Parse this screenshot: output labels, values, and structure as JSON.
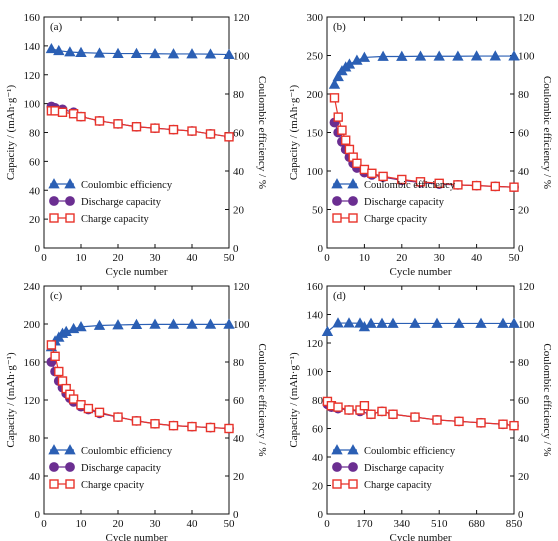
{
  "colors": {
    "coulombic": "#2b5fb4",
    "discharge": "#6b2e91",
    "charge": "#e8332a",
    "axis": "#111111"
  },
  "chart_data": [
    {
      "panel": "(a)",
      "type": "scatter",
      "xlabel": "Cycle number",
      "ylabel_left": "Capacity / (mAh·g⁻¹)",
      "ylabel_right": "Coulombic efficiency / %",
      "xlim": [
        0,
        50
      ],
      "ylim_left": [
        0,
        160
      ],
      "ylim_right": [
        0,
        120
      ],
      "xticks": [
        0,
        10,
        20,
        30,
        40,
        50
      ],
      "yticks_left": [
        0,
        20,
        40,
        60,
        80,
        100,
        120,
        140,
        160
      ],
      "yticks_right": [
        0,
        20,
        40,
        60,
        80,
        100,
        120
      ],
      "legend": [
        "Coulombic efficiency",
        "Discharge capacity",
        "Charge capacity"
      ],
      "series": [
        {
          "name": "Coulombic efficiency",
          "axis": "right",
          "marker": "triangle",
          "x": [
            2,
            4,
            7,
            10,
            15,
            20,
            25,
            30,
            35,
            40,
            45,
            50
          ],
          "y": [
            103.5,
            102.5,
            101.8,
            101.5,
            101.2,
            101.0,
            101.0,
            100.9,
            100.8,
            100.8,
            100.7,
            100.5
          ]
        },
        {
          "name": "Discharge capacity",
          "axis": "left",
          "marker": "circle",
          "x": [
            2,
            3,
            5,
            8,
            10,
            15,
            20,
            25,
            30,
            35,
            40,
            45,
            50
          ],
          "y": [
            98,
            97,
            96,
            94,
            91,
            88,
            86,
            84,
            83,
            82,
            81,
            79,
            77
          ]
        },
        {
          "name": "Charge capacity",
          "axis": "left",
          "marker": "square",
          "x": [
            2,
            3,
            5,
            8,
            10,
            15,
            20,
            25,
            30,
            35,
            40,
            45,
            50
          ],
          "y": [
            95,
            95,
            94,
            93,
            91,
            88,
            86,
            84,
            83,
            82,
            81,
            79,
            77
          ]
        }
      ]
    },
    {
      "panel": "(b)",
      "type": "scatter",
      "xlabel": "Cycle number",
      "ylabel_left": "Capacity / (mAh·g⁻¹)",
      "ylabel_right": "Coulombic efficiency / %",
      "xlim": [
        0,
        50
      ],
      "ylim_left": [
        0,
        300
      ],
      "ylim_right": [
        0,
        120
      ],
      "xticks": [
        0,
        10,
        20,
        30,
        40,
        50
      ],
      "yticks_left": [
        0,
        50,
        100,
        150,
        200,
        250,
        300
      ],
      "yticks_right": [
        0,
        20,
        40,
        60,
        80,
        100,
        120
      ],
      "legend": [
        "Coulombic efficiency",
        "Discharge capacity",
        "Charge cpacity"
      ],
      "series": [
        {
          "name": "Coulombic efficiency",
          "axis": "right",
          "marker": "triangle",
          "x": [
            2,
            3,
            4,
            5,
            6,
            8,
            10,
            15,
            20,
            25,
            30,
            35,
            40,
            45,
            50
          ],
          "y": [
            85,
            89,
            92,
            94,
            95.5,
            97.5,
            99,
            99.5,
            99.5,
            99.6,
            99.6,
            99.6,
            99.7,
            99.7,
            99.7
          ]
        },
        {
          "name": "Discharge capacity",
          "axis": "left",
          "marker": "circle",
          "x": [
            2,
            3,
            4,
            5,
            6,
            7,
            8,
            10,
            12,
            15,
            20,
            25,
            30,
            35,
            40,
            45,
            50
          ],
          "y": [
            163,
            150,
            138,
            128,
            118,
            110,
            104,
            98,
            95,
            92,
            88,
            85,
            83,
            82,
            81,
            80,
            79
          ]
        },
        {
          "name": "Charge cpacity",
          "axis": "left",
          "marker": "square",
          "x": [
            2,
            3,
            4,
            5,
            6,
            7,
            8,
            10,
            12,
            15,
            20,
            25,
            30,
            35,
            40,
            45,
            50
          ],
          "y": [
            195,
            170,
            153,
            140,
            128,
            118,
            110,
            102,
            97,
            93,
            89,
            86,
            84,
            82,
            81,
            80,
            79
          ]
        }
      ]
    },
    {
      "panel": "(c)",
      "type": "scatter",
      "xlabel": "Cycle number",
      "ylabel_left": "Capacity / (mAh·g⁻¹)",
      "ylabel_right": "Coulombic efficiency / %",
      "xlim": [
        0,
        50
      ],
      "ylim_left": [
        0,
        240
      ],
      "ylim_right": [
        0,
        120
      ],
      "xticks": [
        0,
        10,
        20,
        30,
        40,
        50
      ],
      "yticks_left": [
        0,
        40,
        80,
        120,
        160,
        200,
        240
      ],
      "yticks_right": [
        0,
        20,
        40,
        60,
        80,
        100,
        120
      ],
      "legend": [
        "Coulombic efficiency",
        "Discharge capacity",
        "Charge cpacity"
      ],
      "series": [
        {
          "name": "Coulombic efficiency",
          "axis": "right",
          "marker": "triangle",
          "x": [
            2,
            3,
            4,
            5,
            6,
            8,
            10,
            15,
            20,
            25,
            30,
            35,
            40,
            45,
            50
          ],
          "y": [
            88,
            91,
            93,
            95,
            96,
            97.5,
            98.5,
            99.2,
            99.5,
            99.7,
            99.8,
            99.8,
            99.8,
            99.8,
            99.8
          ]
        },
        {
          "name": "Discharge capacity",
          "axis": "left",
          "marker": "circle",
          "x": [
            2,
            3,
            4,
            5,
            6,
            7,
            8,
            10,
            12,
            15,
            20,
            25,
            30,
            35,
            40,
            45,
            50
          ],
          "y": [
            160,
            150,
            140,
            133,
            127,
            122,
            118,
            113,
            110,
            106,
            102,
            98,
            95,
            93,
            92,
            91,
            90
          ]
        },
        {
          "name": "Charge cpacity",
          "axis": "left",
          "marker": "square",
          "x": [
            2,
            3,
            4,
            5,
            6,
            7,
            8,
            10,
            12,
            15,
            20,
            25,
            30,
            35,
            40,
            45,
            50
          ],
          "y": [
            178,
            166,
            150,
            140,
            132,
            126,
            121,
            115,
            111,
            107,
            102,
            98,
            95,
            93,
            92,
            91,
            90
          ]
        }
      ]
    },
    {
      "panel": "(d)",
      "type": "scatter",
      "xlabel": "Cycle number",
      "ylabel_left": "Capacity / (mAh·g⁻¹)",
      "ylabel_right": "Coulombic efficiency / %",
      "xlim": [
        0,
        850
      ],
      "ylim_left": [
        0,
        160
      ],
      "ylim_right": [
        0,
        120
      ],
      "xticks": [
        0,
        170,
        340,
        510,
        680,
        850
      ],
      "yticks_left": [
        0,
        20,
        40,
        60,
        80,
        100,
        120,
        140,
        160
      ],
      "yticks_right": [
        0,
        20,
        40,
        60,
        80,
        100,
        120
      ],
      "legend": [
        "Coulombic efficiency",
        "Discharge capacity",
        "Charge capacity"
      ],
      "series": [
        {
          "name": "Coulombic efficiency",
          "axis": "right",
          "marker": "triangle",
          "x": [
            2,
            50,
            100,
            150,
            170,
            200,
            250,
            300,
            400,
            500,
            600,
            700,
            800,
            850
          ],
          "y": [
            96,
            100.5,
            100.5,
            100.4,
            98.5,
            100.3,
            100.3,
            100.3,
            100.3,
            100.3,
            100.3,
            100.3,
            100.3,
            100.3
          ]
        },
        {
          "name": "Discharge capacity",
          "axis": "left",
          "marker": "circle",
          "x": [
            2,
            20,
            50,
            100,
            150,
            200,
            250,
            300,
            400,
            500,
            600,
            700,
            800,
            850
          ],
          "y": [
            77,
            75,
            74,
            73,
            72,
            70,
            72,
            70,
            68,
            66,
            65,
            64,
            63,
            62
          ]
        },
        {
          "name": "Charge capacity",
          "axis": "left",
          "marker": "square",
          "x": [
            2,
            20,
            50,
            100,
            150,
            170,
            200,
            250,
            300,
            400,
            500,
            600,
            700,
            800,
            850
          ],
          "y": [
            79,
            76,
            75,
            73,
            73,
            76,
            70,
            72,
            70,
            68,
            66,
            65,
            64,
            63,
            62
          ]
        }
      ]
    }
  ]
}
